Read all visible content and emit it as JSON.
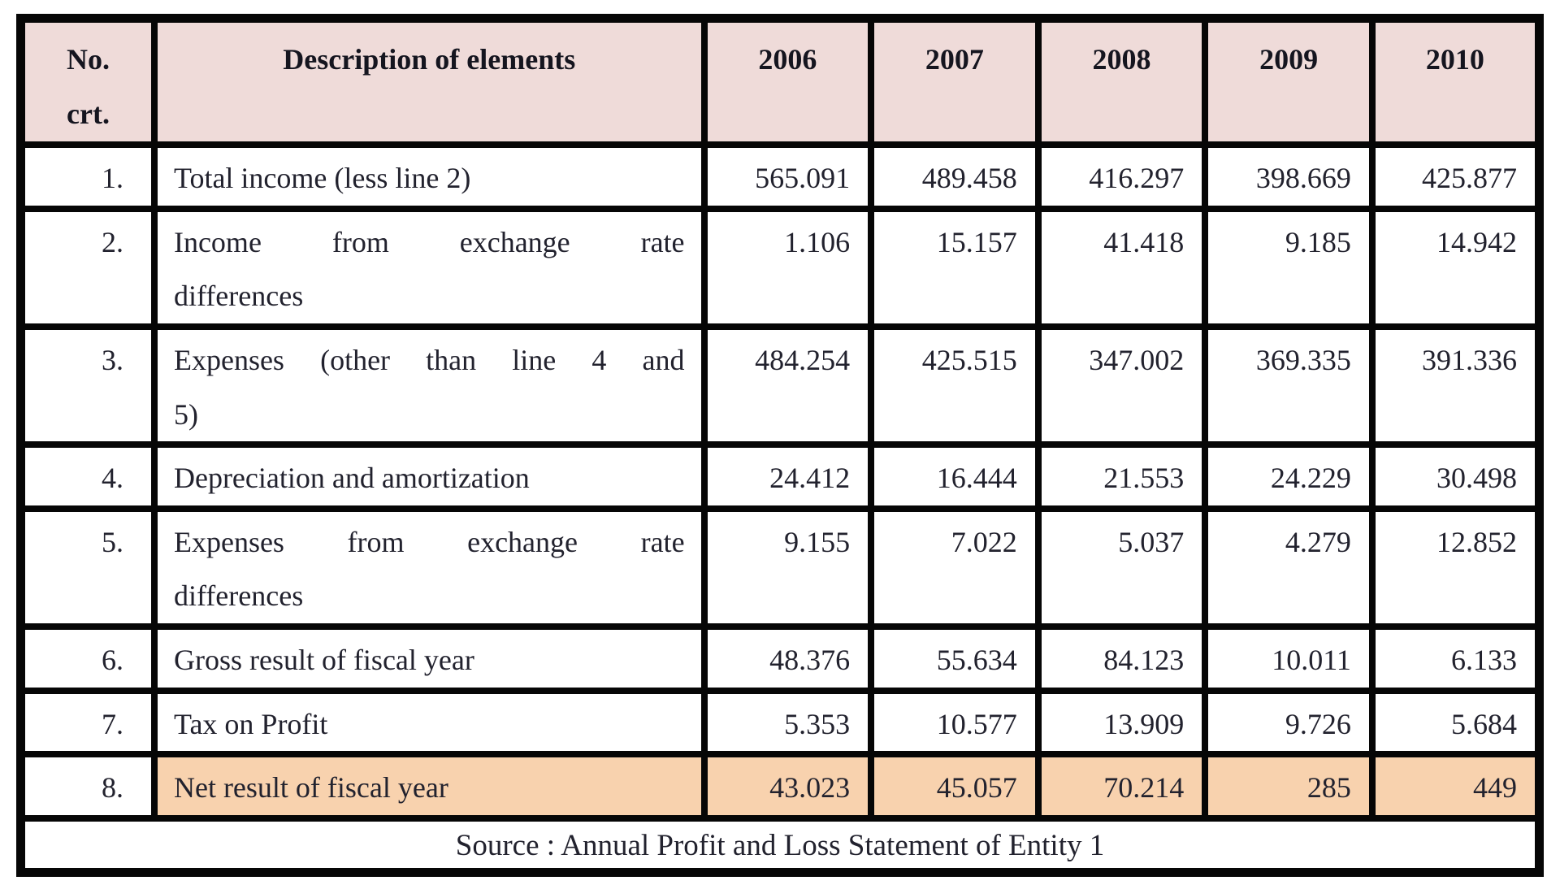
{
  "table": {
    "header": {
      "no_label": "No.\ncrt.",
      "description_label": "Description of elements",
      "years": [
        "2006",
        "2007",
        "2008",
        "2009",
        "2010"
      ]
    },
    "rows": [
      {
        "no": "1.",
        "description": "Total income (less line 2)",
        "values": [
          "565.091",
          "489.458",
          "416.297",
          "398.669",
          "425.877"
        ]
      },
      {
        "no": "2.",
        "description": "Income from exchange rate\ndifferences",
        "values": [
          "1.106",
          "15.157",
          "41.418",
          "9.185",
          "14.942"
        ]
      },
      {
        "no": "3.",
        "description": "Expenses (other than line 4 and\n5)",
        "values": [
          "484.254",
          "425.515",
          "347.002",
          "369.335",
          "391.336"
        ]
      },
      {
        "no": "4.",
        "description": "Depreciation and amortization",
        "values": [
          "24.412",
          "16.444",
          "21.553",
          "24.229",
          "30.498"
        ]
      },
      {
        "no": "5.",
        "description": "Expenses from exchange rate\ndifferences",
        "values": [
          "9.155",
          "7.022",
          "5.037",
          "4.279",
          "12.852"
        ]
      },
      {
        "no": "6.",
        "description": "Gross result of fiscal year",
        "values": [
          "48.376",
          "55.634",
          "84.123",
          "10.011",
          "6.133"
        ]
      },
      {
        "no": "7.",
        "description": "Tax on Profit",
        "values": [
          "5.353",
          "10.577",
          "13.909",
          "9.726",
          "5.684"
        ]
      },
      {
        "no": "8.",
        "description": "Net result of fiscal year",
        "values": [
          "43.023",
          "45.057",
          "70.214",
          "285",
          "449"
        ]
      }
    ],
    "source": "Source : Annual Profit and Loss Statement of Entity 1"
  },
  "colors": {
    "header_bg": "#efdbd9",
    "highlight_bg": "#f8d2ae",
    "border": "#060606",
    "text": "#22222e"
  }
}
